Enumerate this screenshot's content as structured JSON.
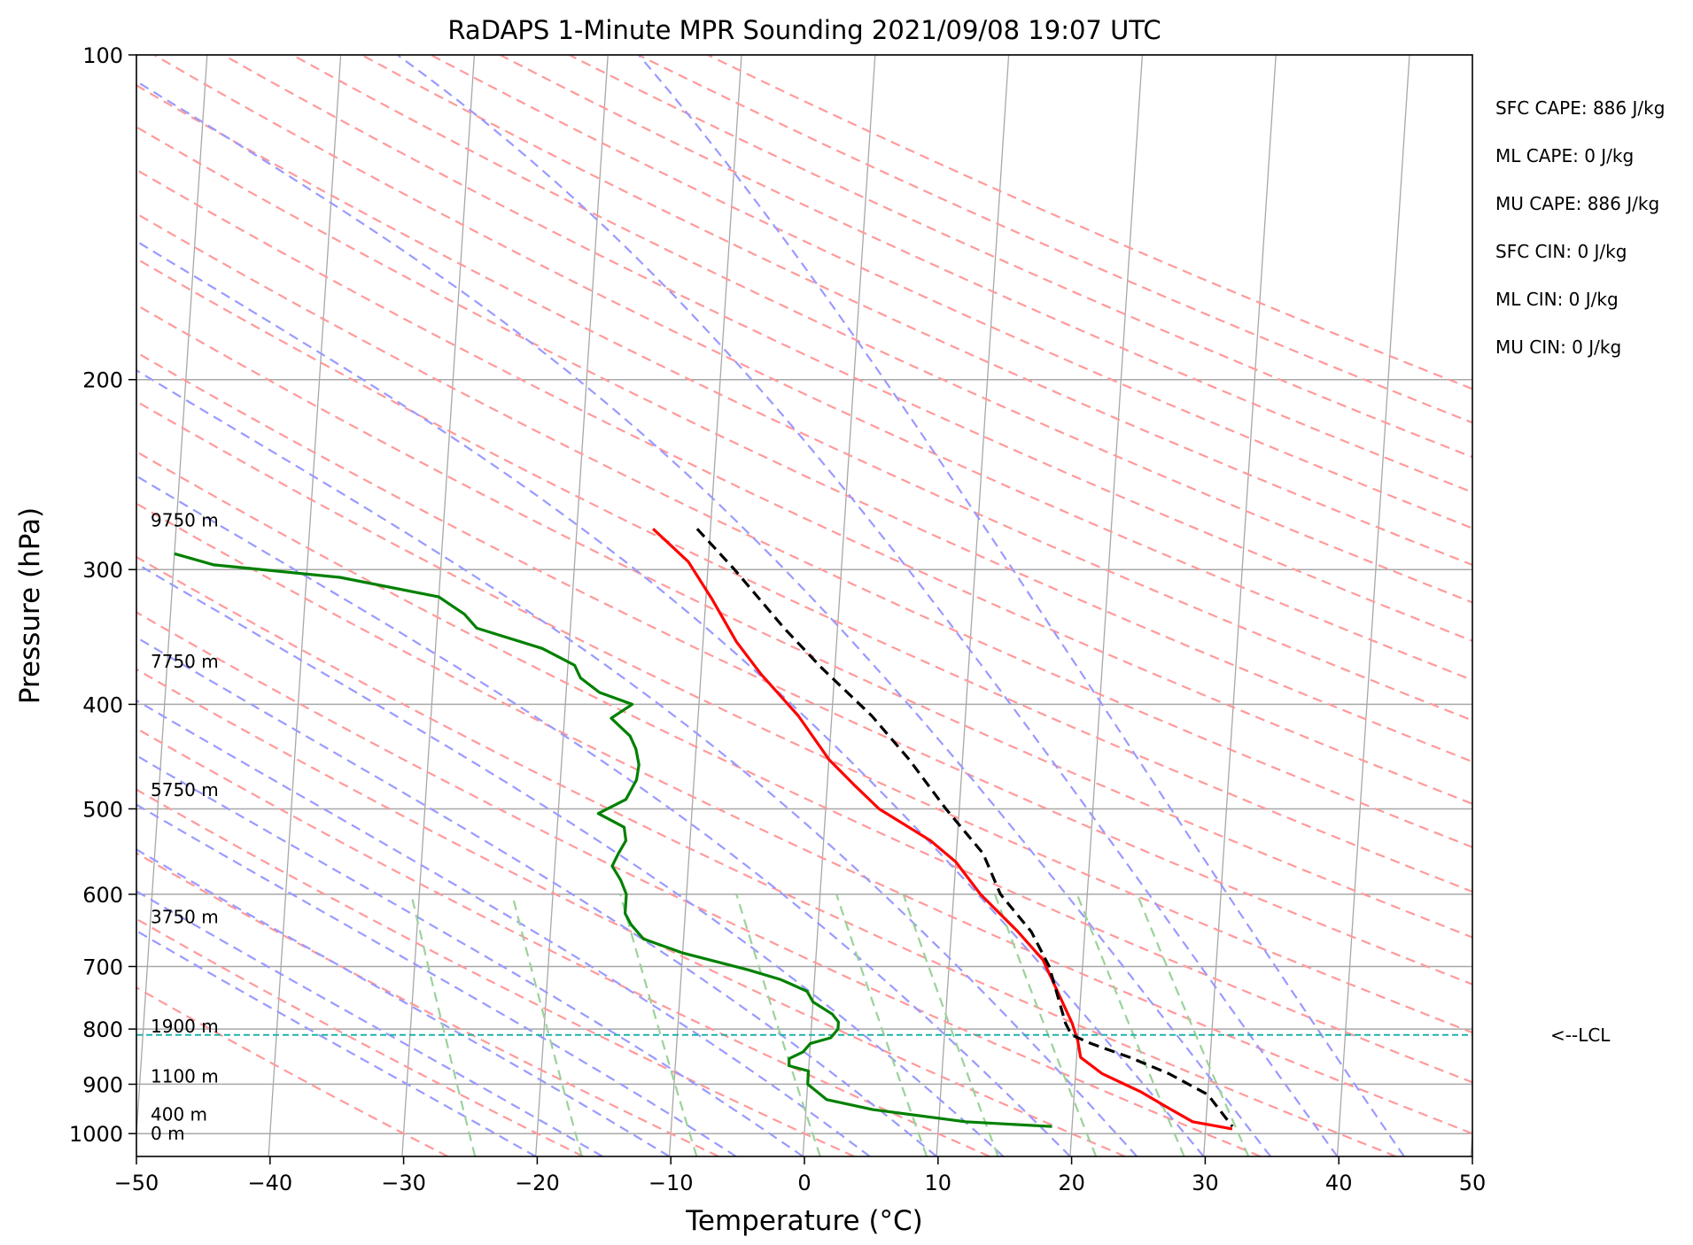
{
  "chart_data": {
    "type": "line",
    "diagram": "skew-T log-P",
    "title": "RaDAPS 1-Minute MPR Sounding 2021/09/08 19:07 UTC",
    "xlabel": "Temperature (°C)",
    "ylabel": "Pressure (hPa)",
    "xlim": [
      -50,
      50
    ],
    "ylim": [
      1050,
      100
    ],
    "y_scale": "log",
    "grid": true,
    "x_ticks": [
      -50,
      -40,
      -30,
      -20,
      -10,
      0,
      10,
      20,
      30,
      40,
      50
    ],
    "y_ticks": [
      100,
      200,
      300,
      400,
      500,
      600,
      700,
      800,
      900,
      1000
    ],
    "series": [
      {
        "color": "#ff0000",
        "points": [
          [
            -14.3,
            275
          ],
          [
            -11.5,
            295
          ],
          [
            -9.5,
            320
          ],
          [
            -7.5,
            350
          ],
          [
            -5.5,
            375
          ],
          [
            -2.5,
            410
          ],
          [
            0,
            450
          ],
          [
            2,
            475
          ],
          [
            4,
            500
          ],
          [
            8,
            535
          ],
          [
            10,
            560
          ],
          [
            12,
            600
          ],
          [
            15,
            650
          ],
          [
            17,
            690
          ],
          [
            19.5,
            790
          ],
          [
            20,
            820
          ],
          [
            20.3,
            850
          ],
          [
            22,
            880
          ],
          [
            25,
            915
          ],
          [
            27,
            945
          ],
          [
            29,
            975
          ],
          [
            32,
            990
          ]
        ]
      },
      {
        "color": "#008000",
        "points": [
          [
            -50,
            290
          ],
          [
            -47,
            297
          ],
          [
            -37.5,
            305
          ],
          [
            -30,
            318
          ],
          [
            -28,
            330
          ],
          [
            -27,
            340
          ],
          [
            -22,
            355
          ],
          [
            -19.5,
            368
          ],
          [
            -19,
            378
          ],
          [
            -17.5,
            390
          ],
          [
            -15,
            400
          ],
          [
            -16.5,
            412
          ],
          [
            -15,
            428
          ],
          [
            -14.5,
            440
          ],
          [
            -14.2,
            455
          ],
          [
            -14.3,
            470
          ],
          [
            -15,
            490
          ],
          [
            -17,
            505
          ],
          [
            -15,
            520
          ],
          [
            -14.8,
            535
          ],
          [
            -15.3,
            550
          ],
          [
            -15.7,
            565
          ],
          [
            -15,
            582
          ],
          [
            -14.5,
            600
          ],
          [
            -14.5,
            625
          ],
          [
            -14,
            640
          ],
          [
            -13,
            660
          ],
          [
            -10,
            680
          ],
          [
            -5,
            705
          ],
          [
            -2.5,
            720
          ],
          [
            -0.5,
            738
          ],
          [
            0,
            755
          ],
          [
            1.5,
            775
          ],
          [
            2,
            788
          ],
          [
            2,
            800
          ],
          [
            1.5,
            815
          ],
          [
            0,
            825
          ],
          [
            -0.5,
            840
          ],
          [
            -1.5,
            852
          ],
          [
            -1.5,
            865
          ],
          [
            0,
            875
          ],
          [
            0,
            885
          ],
          [
            0,
            900
          ],
          [
            1.5,
            930
          ],
          [
            5,
            950
          ],
          [
            12,
            975
          ],
          [
            18.5,
            985
          ]
        ]
      },
      {
        "color": "#000000",
        "dash": true,
        "points": [
          [
            -11,
            275
          ],
          [
            -8,
            300
          ],
          [
            -4,
            340
          ],
          [
            -1,
            370
          ],
          [
            3,
            410
          ],
          [
            6,
            450
          ],
          [
            9,
            500
          ],
          [
            12,
            550
          ],
          [
            13.5,
            600
          ],
          [
            16,
            650
          ],
          [
            17.5,
            700
          ],
          [
            19,
            790
          ],
          [
            19.5,
            810
          ],
          [
            21,
            825
          ],
          [
            24,
            850
          ],
          [
            27,
            880
          ],
          [
            30,
            920
          ],
          [
            32,
            985
          ]
        ]
      }
    ],
    "lcl_pressure": 810,
    "lcl_label": "<--LCL",
    "height_labels": [
      {
        "text": "9750 m",
        "p": 270
      },
      {
        "text": "7750 m",
        "p": 365
      },
      {
        "text": "5750 m",
        "p": 480
      },
      {
        "text": "3750 m",
        "p": 630
      },
      {
        "text": "1900 m",
        "p": 795
      },
      {
        "text": "1100 m",
        "p": 885
      },
      {
        "text": "400 m",
        "p": 960
      },
      {
        "text": "0 m",
        "p": 1000
      }
    ],
    "annotations": [
      "SFC CAPE: 886 J/kg",
      "ML CAPE: 0 J/kg",
      "MU CAPE: 886 J/kg",
      "SFC CIN: 0 J/kg",
      "ML CIN: 0 J/kg",
      "MU CIN: 0 J/kg"
    ],
    "colors": {
      "isotherm": "#a8a8a8",
      "dry_adiabat": "#ff9a9a",
      "moist_adiabat": "#9a9aff",
      "mixing_ratio": "#9bd29b",
      "lcl": "#20b2aa"
    }
  }
}
